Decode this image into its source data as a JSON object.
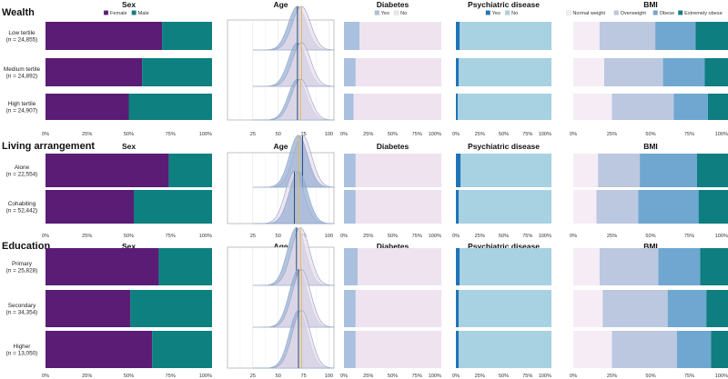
{
  "chart_data": {
    "type": "bar",
    "legends": {
      "sex": [
        {
          "label": "Female",
          "color": "#5a1c75"
        },
        {
          "label": "Male",
          "color": "#0e8080"
        }
      ],
      "diabetes": [
        {
          "label": "Yes",
          "color": "#a9c0de"
        },
        {
          "label": "No",
          "color": "#efe3f0"
        }
      ],
      "psychiatric": [
        {
          "label": "Yes",
          "color": "#1f74b8"
        },
        {
          "label": "No",
          "color": "#a8d1e2"
        }
      ],
      "bmi": [
        {
          "label": "Normal weight",
          "color": "#f5ecf5"
        },
        {
          "label": "Overweight",
          "color": "#bcc7e0"
        },
        {
          "label": "Obese",
          "color": "#6fa7d0"
        },
        {
          "label": "Extremely obese",
          "color": "#0e7e80"
        }
      ]
    },
    "panel_titles": {
      "sex": "Sex",
      "age": "Age",
      "diabetes": "Diabetes",
      "psychiatric": "Psychiatric disease",
      "bmi": "BMI"
    },
    "pct_ticks": [
      "0%",
      "25%",
      "50%",
      "75%",
      "100%"
    ],
    "age_ticks": [
      25,
      50,
      75,
      100
    ],
    "age_xlim": [
      0,
      105
    ],
    "age_colors": {
      "fill_a": "#94aed3",
      "fill_b": "#e9dcea",
      "mean_line": "#2f4a6b",
      "median_line": "#e6b84d"
    },
    "sections": [
      {
        "title": "Wealth",
        "groups": [
          {
            "label": "Low tertile",
            "n": "(n = 24,855)",
            "female": 70,
            "diabetes_yes": 16,
            "psychiatric_yes": 4,
            "bmi": [
              17,
              36,
              26,
              21
            ],
            "age": [
              {
                "mean": 69,
                "sd": 9,
                "fill": "a"
              },
              {
                "mean": 73,
                "sd": 9,
                "fill": "b"
              }
            ]
          },
          {
            "label": "Medium tertile",
            "n": "(n = 24,892)",
            "female": 58,
            "diabetes_yes": 12,
            "psychiatric_yes": 3,
            "bmi": [
              20,
              38,
              27,
              15
            ],
            "age": [
              {
                "mean": 69,
                "sd": 9,
                "fill": "a"
              },
              {
                "mean": 73,
                "sd": 9,
                "fill": "b"
              }
            ]
          },
          {
            "label": "High tertile",
            "n": "(n = 24,907)",
            "female": 50,
            "diabetes_yes": 10,
            "psychiatric_yes": 2,
            "bmi": [
              25,
              40,
              22,
              13
            ],
            "age": [
              {
                "mean": 69,
                "sd": 9,
                "fill": "a"
              },
              {
                "mean": 72,
                "sd": 9,
                "fill": "b"
              }
            ]
          }
        ]
      },
      {
        "title": "Living arrangement",
        "groups": [
          {
            "label": "Alone",
            "n": "(n = 22,554)",
            "female": 74,
            "diabetes_yes": 12,
            "psychiatric_yes": 5,
            "bmi": [
              16,
              27,
              37,
              20
            ],
            "age": [
              {
                "mean": 74,
                "sd": 9,
                "fill": "b"
              },
              {
                "mean": 70,
                "sd": 9,
                "fill": "a"
              }
            ]
          },
          {
            "label": "Cohabiting",
            "n": "(n = 52,442)",
            "female": 53,
            "diabetes_yes": 12,
            "psychiatric_yes": 3,
            "bmi": [
              15,
              27,
              39,
              19
            ],
            "age": [
              {
                "mean": 66,
                "sd": 9,
                "fill": "b"
              },
              {
                "mean": 70,
                "sd": 9,
                "fill": "a"
              }
            ]
          }
        ]
      },
      {
        "title": "Education",
        "groups": [
          {
            "label": "Primary",
            "n": "(n = 25,828)",
            "female": 68,
            "diabetes_yes": 14,
            "psychiatric_yes": 4,
            "bmi": [
              17,
              38,
              27,
              18
            ],
            "age": [
              {
                "mean": 68,
                "sd": 9,
                "fill": "a"
              },
              {
                "mean": 72,
                "sd": 9,
                "fill": "b"
              }
            ]
          },
          {
            "label": "Secondary",
            "n": "(n = 34,354)",
            "female": 51,
            "diabetes_yes": 12,
            "psychiatric_yes": 3,
            "bmi": [
              19,
              42,
              25,
              14
            ],
            "age": [
              {
                "mean": 70,
                "sd": 9,
                "fill": "a"
              },
              {
                "mean": 73,
                "sd": 9,
                "fill": "b"
              }
            ]
          },
          {
            "label": "Higher",
            "n": "(n = 13,050)",
            "female": 64,
            "diabetes_yes": 12,
            "psychiatric_yes": 3,
            "bmi": [
              25,
              42,
              22,
              11
            ],
            "age": [
              {
                "mean": 70,
                "sd": 9,
                "fill": "a"
              },
              {
                "mean": 73,
                "sd": 9,
                "fill": "b"
              }
            ]
          }
        ]
      }
    ]
  }
}
